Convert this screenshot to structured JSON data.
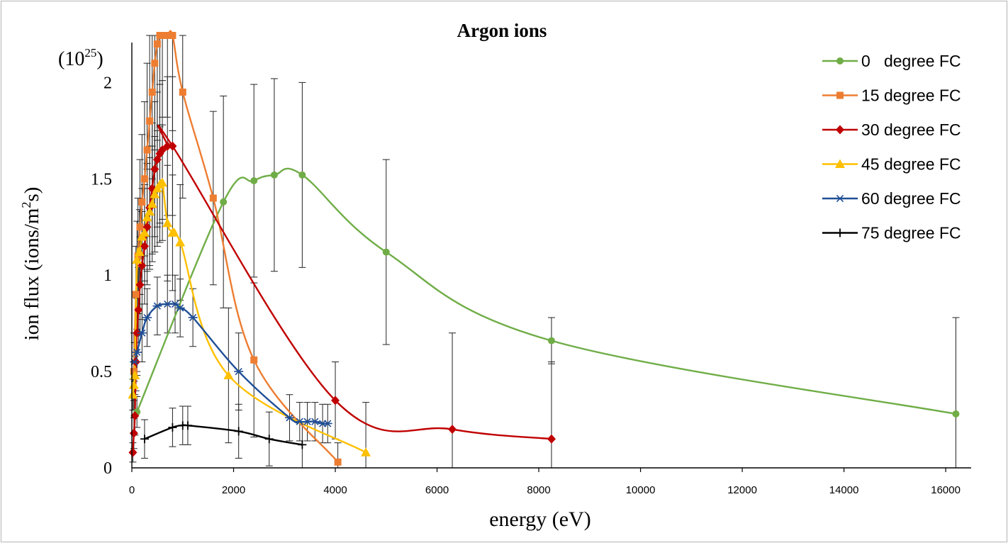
{
  "chart_data": {
    "type": "scatter",
    "title": "Argon ions",
    "xlabel": "energy (eV)",
    "ylabel_prefix": "ion flux (ions/m",
    "ylabel_sup": "2",
    "ylabel_suffix": "s)",
    "y_multiplier_base": "(10",
    "y_multiplier_exp": "25",
    "y_multiplier_close": ")",
    "xlim": [
      0,
      16500
    ],
    "ylim": [
      0,
      2.2
    ],
    "x_ticks": [
      0,
      2000,
      4000,
      6000,
      8000,
      10000,
      12000,
      14000,
      16000
    ],
    "x_tick_labels": [
      "0",
      "2000",
      "4000",
      "6000",
      "8000",
      "10000",
      "12000",
      "14000",
      "16000"
    ],
    "y_ticks": [
      0,
      0.5,
      1,
      1.5,
      2
    ],
    "y_tick_labels": [
      "0",
      "0.5",
      "1",
      "1.5",
      "2"
    ],
    "grid": false,
    "legend_position": "top-right",
    "series": [
      {
        "name": "0   degree FC",
        "color": "#70ad47",
        "marker": "circle",
        "x": [
          100,
          1800,
          2400,
          2800,
          3350,
          5000,
          8250,
          16200
        ],
        "y": [
          0.29,
          1.38,
          1.49,
          1.52,
          1.52,
          1.12,
          0.66,
          0.28
        ],
        "err": [
          0.08,
          0.55,
          0.5,
          0.5,
          0.48,
          0.48,
          0.12,
          0.5
        ]
      },
      {
        "name": "15 degree FC",
        "color": "#ed7d31",
        "marker": "square",
        "x": [
          40,
          80,
          120,
          160,
          200,
          250,
          300,
          350,
          400,
          450,
          500,
          550,
          600,
          700,
          800,
          1000,
          1600,
          2400,
          4050
        ],
        "y": [
          0.5,
          0.9,
          1.1,
          1.25,
          1.38,
          1.5,
          1.65,
          1.8,
          1.95,
          2.1,
          2.2,
          2.28,
          2.32,
          2.32,
          2.25,
          1.95,
          1.4,
          0.56,
          0.03
        ],
        "err": [
          0.2,
          0.25,
          0.3,
          0.35,
          0.35,
          0.4,
          0.45,
          0.45,
          0.45,
          0.45,
          0.5,
          0.5,
          0.5,
          0.5,
          0.5,
          0.55,
          0.45,
          0.4,
          0.1
        ]
      },
      {
        "name": "30 degree FC",
        "color": "#c00000",
        "marker": "diamond",
        "x": [
          20,
          40,
          60,
          80,
          100,
          130,
          160,
          200,
          250,
          300,
          350,
          400,
          450,
          500,
          550,
          600,
          700,
          800,
          4000,
          6300,
          8250
        ],
        "y": [
          0.08,
          0.18,
          0.27,
          0.55,
          0.7,
          0.82,
          0.95,
          1.05,
          1.15,
          1.25,
          1.35,
          1.45,
          1.55,
          1.6,
          1.63,
          1.65,
          1.67,
          1.67,
          0.35,
          0.2,
          0.15
        ],
        "err": [
          0.05,
          0.08,
          0.1,
          0.15,
          0.2,
          0.22,
          0.25,
          0.28,
          0.3,
          0.3,
          0.32,
          0.34,
          0.35,
          0.35,
          0.36,
          0.36,
          0.36,
          0.36,
          0.2,
          0.5,
          0.4
        ]
      },
      {
        "name": "45 degree FC",
        "color": "#ffc000",
        "marker": "triangle",
        "x": [
          20,
          40,
          60,
          100,
          150,
          200,
          250,
          300,
          350,
          400,
          450,
          500,
          550,
          600,
          700,
          800,
          950,
          1900,
          4600
        ],
        "y": [
          0.38,
          0.43,
          0.48,
          1.08,
          1.12,
          1.2,
          1.22,
          1.3,
          1.33,
          1.37,
          1.42,
          1.45,
          1.47,
          1.48,
          1.27,
          1.22,
          1.17,
          0.48,
          0.08
        ],
        "err": [
          0.08,
          0.08,
          0.1,
          0.2,
          0.22,
          0.25,
          0.25,
          0.28,
          0.28,
          0.3,
          0.3,
          0.3,
          0.3,
          0.3,
          0.3,
          0.3,
          0.3,
          0.35,
          0.26
        ]
      },
      {
        "name": "60 degree FC",
        "color": "#1f4e96",
        "marker": "star",
        "x": [
          50,
          100,
          200,
          300,
          500,
          700,
          850,
          950,
          1200,
          2100,
          3100,
          3300,
          3450,
          3600,
          3750,
          3850
        ],
        "y": [
          0.55,
          0.6,
          0.7,
          0.78,
          0.84,
          0.85,
          0.85,
          0.83,
          0.78,
          0.5,
          0.26,
          0.24,
          0.24,
          0.24,
          0.23,
          0.23
        ],
        "err": [
          0.1,
          0.12,
          0.15,
          0.15,
          0.15,
          0.15,
          0.15,
          0.15,
          0.15,
          0.2,
          0.12,
          0.1,
          0.1,
          0.1,
          0.1,
          0.1
        ]
      },
      {
        "name": "75 degree FC",
        "color": "#000000",
        "marker": "plus",
        "x": [
          250,
          800,
          1000,
          1100,
          2100,
          2700,
          3350
        ],
        "y": [
          0.15,
          0.21,
          0.22,
          0.22,
          0.19,
          0.15,
          0.12
        ],
        "err": [
          0.1,
          0.1,
          0.1,
          0.1,
          0.14,
          0.14,
          0.12
        ]
      }
    ]
  }
}
